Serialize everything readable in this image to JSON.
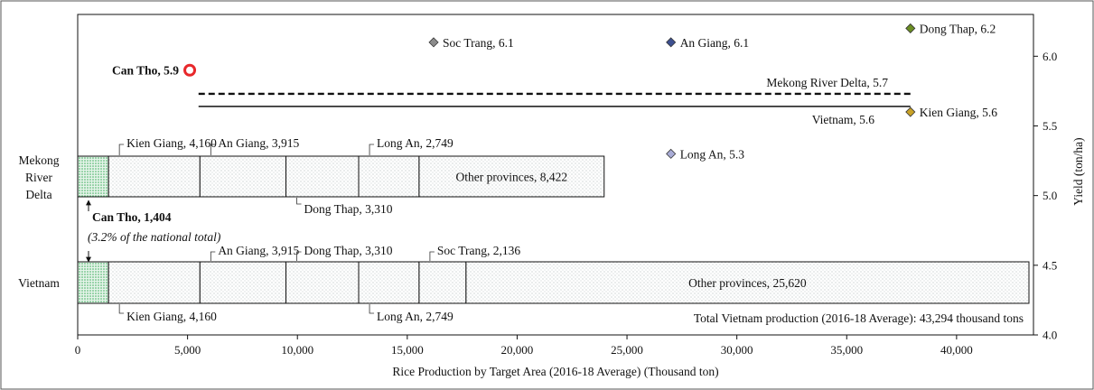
{
  "chart_data": {
    "type": "bar",
    "x_axis": {
      "label": "Rice Production by Target Area (2016-18 Average) (Thousand ton)",
      "range": [
        0,
        43500
      ],
      "ticks": [
        0,
        5000,
        10000,
        15000,
        20000,
        25000,
        30000,
        35000,
        40000
      ],
      "tick_labels": [
        "0",
        "5,000",
        "10,000",
        "15,000",
        "20,000",
        "25,000",
        "30,000",
        "35,000",
        "40,000"
      ]
    },
    "y2_axis": {
      "label": "Yield (ton/ha)",
      "range": [
        4.0,
        6.3
      ],
      "ticks": [
        4.0,
        4.5,
        5.0,
        5.5,
        6.0
      ],
      "tick_labels": [
        "4.0",
        "4.5",
        "5.0",
        "5.5",
        "6.0"
      ]
    },
    "bars": [
      {
        "category": "Mekong River Delta",
        "category_lines": [
          "Mekong",
          "River",
          "Delta"
        ],
        "segments": [
          {
            "name": "Can Tho",
            "value": 1404,
            "highlight": true
          },
          {
            "name": "Kien Giang",
            "value": 4160
          },
          {
            "name": "An Giang",
            "value": 3915
          },
          {
            "name": "Dong Thap",
            "value": 3310
          },
          {
            "name": "Long An",
            "value": 2749
          },
          {
            "name": "Other provinces",
            "value": 8422
          }
        ],
        "labels": [
          {
            "text": "Kien Giang, 4,160",
            "segment": 1,
            "side": "top"
          },
          {
            "text": "An Giang, 3,915",
            "segment": 2,
            "side": "top"
          },
          {
            "text": "Long An, 2,749",
            "segment": 4,
            "side": "top"
          },
          {
            "text": "Dong Thap, 3,310",
            "segment": 3,
            "side": "bottom"
          },
          {
            "text": "Other provinces, 8,422",
            "segment": 5,
            "side": "inside"
          }
        ]
      },
      {
        "category": "Vietnam",
        "category_lines": [
          "Vietnam"
        ],
        "segments": [
          {
            "name": "Can Tho",
            "value": 1404,
            "highlight": true
          },
          {
            "name": "Kien Giang",
            "value": 4160
          },
          {
            "name": "An Giang",
            "value": 3915
          },
          {
            "name": "Dong Thap",
            "value": 3310
          },
          {
            "name": "Long An",
            "value": 2749
          },
          {
            "name": "Soc Trang",
            "value": 2136
          },
          {
            "name": "Other provinces",
            "value": 25620
          }
        ],
        "labels": [
          {
            "text": "An Giang, 3,915",
            "segment": 2,
            "side": "top"
          },
          {
            "text": "Dong Thap, 3,310",
            "segment": 3,
            "side": "top"
          },
          {
            "text": "Soc Trang, 2,136",
            "segment": 5,
            "side": "top"
          },
          {
            "text": "Kien Giang, 4,160",
            "segment": 1,
            "side": "bottom"
          },
          {
            "text": "Long An, 2,749",
            "segment": 4,
            "side": "bottom"
          },
          {
            "text": "Other provinces, 25,620",
            "segment": 6,
            "side": "inside"
          }
        ]
      }
    ],
    "yield_points": [
      {
        "name": "Can Tho",
        "x": 5100,
        "y": 5.9,
        "label": "Can Tho, 5.9",
        "marker": "circle",
        "color": "#e8282b",
        "bold": true
      },
      {
        "name": "Soc Trang",
        "x": 16200,
        "y": 6.1,
        "label": "Soc Trang, 6.1",
        "marker": "diamond",
        "color": "#8c8c8c"
      },
      {
        "name": "An Giang",
        "x": 27000,
        "y": 6.1,
        "label": "An Giang, 6.1",
        "marker": "diamond",
        "color": "#3d5090"
      },
      {
        "name": "Dong Thap",
        "x": 37900,
        "y": 6.2,
        "label": "Dong Thap, 6.2",
        "marker": "diamond",
        "color": "#6b8e23"
      },
      {
        "name": "Kien Giang",
        "x": 37900,
        "y": 5.6,
        "label": "Kien Giang, 5.6",
        "marker": "diamond",
        "color": "#c9a227"
      },
      {
        "name": "Long An",
        "x": 27000,
        "y": 5.3,
        "label": "Long An, 5.3",
        "marker": "diamond",
        "color": "#a9acd6"
      }
    ],
    "yield_lines": [
      {
        "name": "Mekong River Delta",
        "y": 5.73,
        "label": "Mekong River Delta, 5.7",
        "style": "dashed",
        "x_start": 5500,
        "x_end": 37900
      },
      {
        "name": "Vietnam",
        "y": 5.64,
        "label": "Vietnam, 5.6",
        "style": "solid",
        "x_start": 5500,
        "x_end": 37900
      }
    ],
    "annotations": {
      "can_tho_main": "Can Tho, 1,404",
      "can_tho_sub": "(3.2% of the national total)",
      "total": "Total Vietnam production (2016-18 Average): 43,294 thousand tons"
    }
  }
}
